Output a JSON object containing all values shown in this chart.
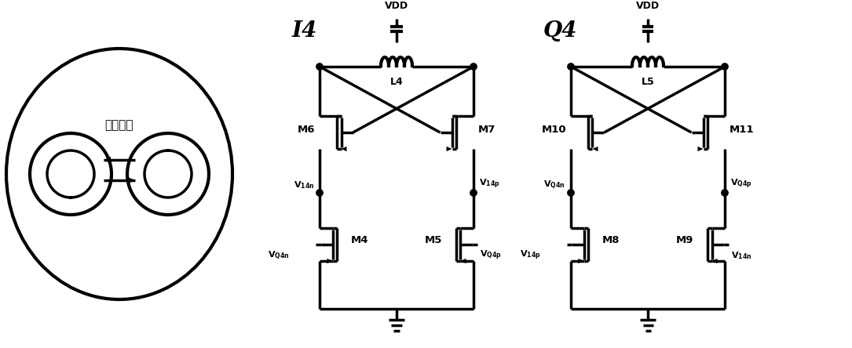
{
  "bg_color": "#ffffff",
  "line_color": "#000000",
  "lw": 2.5,
  "lw_thin": 2.0,
  "I4_label": "I4",
  "Q4_label": "Q4",
  "VDD_label": "VDD",
  "L4_label": "L4",
  "L5_label": "L5",
  "coupling_label": "正交耦合",
  "figw": 10.85,
  "figh": 4.44,
  "dpi": 100
}
